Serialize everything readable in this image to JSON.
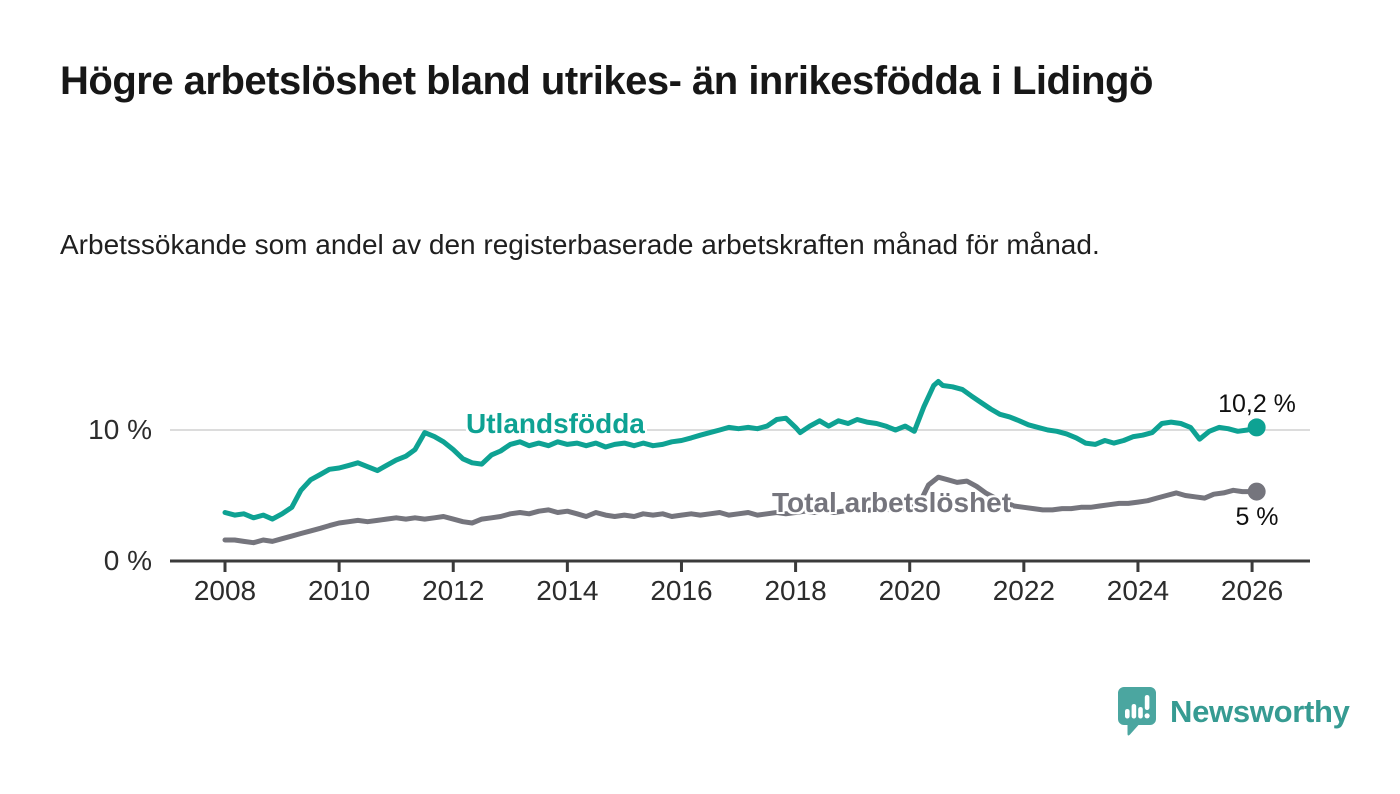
{
  "header": {
    "title": "Högre arbetslöshet bland utrikes- än inrikesfödda i Lidingö",
    "subtitle": "Arbetssökande som andel av den registerbaserade arbetskraften månad för månad."
  },
  "chart_data": {
    "type": "line",
    "title": "Högre arbetslöshet bland utrikes- än inrikesfödda i Lidingö",
    "subtitle": "Arbetssökande som andel av den registerbaserade arbetskraften månad för månad.",
    "xlabel": "",
    "ylabel": "",
    "x_ticks": [
      2008,
      2010,
      2012,
      2014,
      2016,
      2018,
      2020,
      2022,
      2024,
      2026
    ],
    "x_range_years": [
      2008,
      2026.2
    ],
    "ylim": [
      0,
      15
    ],
    "y_axis_labels": [
      "10 %",
      "0 %"
    ],
    "y_gridlines_pct": [
      10
    ],
    "grid": "horizontal-10-only",
    "legend_position": "inline-labels-on-lines",
    "colors": {
      "foreign_born_line": "#0ea293",
      "total_line": "#75757d",
      "gridline": "#dcdcdc",
      "axis": "#3b3b3b"
    },
    "series": [
      {
        "name": "Utlandsfödda",
        "color": "#0ea293",
        "end_label": "10,2 %",
        "end_value": 10.2,
        "data": [
          [
            2008.0,
            3.7
          ],
          [
            2008.17,
            3.5
          ],
          [
            2008.33,
            3.6
          ],
          [
            2008.5,
            3.3
          ],
          [
            2008.67,
            3.5
          ],
          [
            2008.83,
            3.2
          ],
          [
            2009.0,
            3.6
          ],
          [
            2009.17,
            4.1
          ],
          [
            2009.33,
            5.4
          ],
          [
            2009.5,
            6.2
          ],
          [
            2009.67,
            6.6
          ],
          [
            2009.83,
            7.0
          ],
          [
            2010.0,
            7.1
          ],
          [
            2010.17,
            7.3
          ],
          [
            2010.33,
            7.5
          ],
          [
            2010.5,
            7.2
          ],
          [
            2010.67,
            6.9
          ],
          [
            2010.83,
            7.3
          ],
          [
            2011.0,
            7.7
          ],
          [
            2011.17,
            8.0
          ],
          [
            2011.33,
            8.5
          ],
          [
            2011.5,
            9.8
          ],
          [
            2011.67,
            9.5
          ],
          [
            2011.83,
            9.1
          ],
          [
            2012.0,
            8.5
          ],
          [
            2012.17,
            7.8
          ],
          [
            2012.33,
            7.5
          ],
          [
            2012.5,
            7.4
          ],
          [
            2012.67,
            8.1
          ],
          [
            2012.83,
            8.4
          ],
          [
            2013.0,
            8.9
          ],
          [
            2013.17,
            9.1
          ],
          [
            2013.33,
            8.8
          ],
          [
            2013.5,
            9.0
          ],
          [
            2013.67,
            8.8
          ],
          [
            2013.83,
            9.1
          ],
          [
            2014.0,
            8.9
          ],
          [
            2014.17,
            9.0
          ],
          [
            2014.33,
            8.8
          ],
          [
            2014.5,
            9.0
          ],
          [
            2014.67,
            8.7
          ],
          [
            2014.83,
            8.9
          ],
          [
            2015.0,
            9.0
          ],
          [
            2015.17,
            8.8
          ],
          [
            2015.33,
            9.0
          ],
          [
            2015.5,
            8.8
          ],
          [
            2015.67,
            8.9
          ],
          [
            2015.83,
            9.1
          ],
          [
            2016.0,
            9.2
          ],
          [
            2016.17,
            9.4
          ],
          [
            2016.33,
            9.6
          ],
          [
            2016.5,
            9.8
          ],
          [
            2016.67,
            10.0
          ],
          [
            2016.83,
            10.2
          ],
          [
            2017.0,
            10.1
          ],
          [
            2017.17,
            10.2
          ],
          [
            2017.33,
            10.1
          ],
          [
            2017.5,
            10.3
          ],
          [
            2017.67,
            10.8
          ],
          [
            2017.83,
            10.9
          ],
          [
            2018.0,
            10.2
          ],
          [
            2018.08,
            9.8
          ],
          [
            2018.25,
            10.3
          ],
          [
            2018.42,
            10.7
          ],
          [
            2018.58,
            10.3
          ],
          [
            2018.75,
            10.7
          ],
          [
            2018.92,
            10.5
          ],
          [
            2019.08,
            10.8
          ],
          [
            2019.25,
            10.6
          ],
          [
            2019.42,
            10.5
          ],
          [
            2019.58,
            10.3
          ],
          [
            2019.75,
            10.0
          ],
          [
            2019.92,
            10.3
          ],
          [
            2020.08,
            9.9
          ],
          [
            2020.25,
            11.8
          ],
          [
            2020.42,
            13.4
          ],
          [
            2020.5,
            13.7
          ],
          [
            2020.58,
            13.4
          ],
          [
            2020.75,
            13.3
          ],
          [
            2020.92,
            13.1
          ],
          [
            2021.08,
            12.6
          ],
          [
            2021.25,
            12.1
          ],
          [
            2021.42,
            11.6
          ],
          [
            2021.58,
            11.2
          ],
          [
            2021.75,
            11.0
          ],
          [
            2021.92,
            10.7
          ],
          [
            2022.08,
            10.4
          ],
          [
            2022.25,
            10.2
          ],
          [
            2022.42,
            10.0
          ],
          [
            2022.58,
            9.9
          ],
          [
            2022.75,
            9.7
          ],
          [
            2022.92,
            9.4
          ],
          [
            2023.08,
            9.0
          ],
          [
            2023.25,
            8.9
          ],
          [
            2023.42,
            9.2
          ],
          [
            2023.58,
            9.0
          ],
          [
            2023.75,
            9.2
          ],
          [
            2023.92,
            9.5
          ],
          [
            2024.08,
            9.6
          ],
          [
            2024.25,
            9.8
          ],
          [
            2024.42,
            10.5
          ],
          [
            2024.58,
            10.6
          ],
          [
            2024.75,
            10.5
          ],
          [
            2024.92,
            10.2
          ],
          [
            2025.08,
            9.3
          ],
          [
            2025.25,
            9.9
          ],
          [
            2025.42,
            10.2
          ],
          [
            2025.58,
            10.1
          ],
          [
            2025.75,
            9.9
          ],
          [
            2025.92,
            10.0
          ],
          [
            2026.08,
            10.2
          ]
        ]
      },
      {
        "name": "Total arbetslöshet",
        "color": "#75757d",
        "end_label": "5 %",
        "end_value": 5.3,
        "data": [
          [
            2008.0,
            1.6
          ],
          [
            2008.17,
            1.6
          ],
          [
            2008.33,
            1.5
          ],
          [
            2008.5,
            1.4
          ],
          [
            2008.67,
            1.6
          ],
          [
            2008.83,
            1.5
          ],
          [
            2009.0,
            1.7
          ],
          [
            2009.17,
            1.9
          ],
          [
            2009.33,
            2.1
          ],
          [
            2009.5,
            2.3
          ],
          [
            2009.67,
            2.5
          ],
          [
            2009.83,
            2.7
          ],
          [
            2010.0,
            2.9
          ],
          [
            2010.17,
            3.0
          ],
          [
            2010.33,
            3.1
          ],
          [
            2010.5,
            3.0
          ],
          [
            2010.67,
            3.1
          ],
          [
            2010.83,
            3.2
          ],
          [
            2011.0,
            3.3
          ],
          [
            2011.17,
            3.2
          ],
          [
            2011.33,
            3.3
          ],
          [
            2011.5,
            3.2
          ],
          [
            2011.67,
            3.3
          ],
          [
            2011.83,
            3.4
          ],
          [
            2012.0,
            3.2
          ],
          [
            2012.17,
            3.0
          ],
          [
            2012.33,
            2.9
          ],
          [
            2012.5,
            3.2
          ],
          [
            2012.67,
            3.3
          ],
          [
            2012.83,
            3.4
          ],
          [
            2013.0,
            3.6
          ],
          [
            2013.17,
            3.7
          ],
          [
            2013.33,
            3.6
          ],
          [
            2013.5,
            3.8
          ],
          [
            2013.67,
            3.9
          ],
          [
            2013.83,
            3.7
          ],
          [
            2014.0,
            3.8
          ],
          [
            2014.17,
            3.6
          ],
          [
            2014.33,
            3.4
          ],
          [
            2014.5,
            3.7
          ],
          [
            2014.67,
            3.5
          ],
          [
            2014.83,
            3.4
          ],
          [
            2015.0,
            3.5
          ],
          [
            2015.17,
            3.4
          ],
          [
            2015.33,
            3.6
          ],
          [
            2015.5,
            3.5
          ],
          [
            2015.67,
            3.6
          ],
          [
            2015.83,
            3.4
          ],
          [
            2016.0,
            3.5
          ],
          [
            2016.17,
            3.6
          ],
          [
            2016.33,
            3.5
          ],
          [
            2016.5,
            3.6
          ],
          [
            2016.67,
            3.7
          ],
          [
            2016.83,
            3.5
          ],
          [
            2017.0,
            3.6
          ],
          [
            2017.17,
            3.7
          ],
          [
            2017.33,
            3.5
          ],
          [
            2017.5,
            3.6
          ],
          [
            2017.67,
            3.7
          ],
          [
            2017.83,
            3.6
          ],
          [
            2018.0,
            3.7
          ],
          [
            2018.17,
            3.8
          ],
          [
            2018.33,
            3.7
          ],
          [
            2018.5,
            3.9
          ],
          [
            2018.67,
            3.7
          ],
          [
            2018.83,
            3.8
          ],
          [
            2019.0,
            3.9
          ],
          [
            2019.17,
            3.8
          ],
          [
            2019.33,
            3.9
          ],
          [
            2019.5,
            4.0
          ],
          [
            2019.67,
            3.9
          ],
          [
            2019.83,
            4.0
          ],
          [
            2020.0,
            4.0
          ],
          [
            2020.17,
            4.4
          ],
          [
            2020.33,
            5.8
          ],
          [
            2020.5,
            6.4
          ],
          [
            2020.67,
            6.2
          ],
          [
            2020.83,
            6.0
          ],
          [
            2021.0,
            6.1
          ],
          [
            2021.17,
            5.7
          ],
          [
            2021.33,
            5.2
          ],
          [
            2021.5,
            4.8
          ],
          [
            2021.67,
            4.5
          ],
          [
            2021.83,
            4.2
          ],
          [
            2022.0,
            4.1
          ],
          [
            2022.17,
            4.0
          ],
          [
            2022.33,
            3.9
          ],
          [
            2022.5,
            3.9
          ],
          [
            2022.67,
            4.0
          ],
          [
            2022.83,
            4.0
          ],
          [
            2023.0,
            4.1
          ],
          [
            2023.17,
            4.1
          ],
          [
            2023.33,
            4.2
          ],
          [
            2023.5,
            4.3
          ],
          [
            2023.67,
            4.4
          ],
          [
            2023.83,
            4.4
          ],
          [
            2024.0,
            4.5
          ],
          [
            2024.17,
            4.6
          ],
          [
            2024.33,
            4.8
          ],
          [
            2024.5,
            5.0
          ],
          [
            2024.67,
            5.2
          ],
          [
            2024.83,
            5.0
          ],
          [
            2025.0,
            4.9
          ],
          [
            2025.17,
            4.8
          ],
          [
            2025.33,
            5.1
          ],
          [
            2025.5,
            5.2
          ],
          [
            2025.67,
            5.4
          ],
          [
            2025.83,
            5.3
          ],
          [
            2026.08,
            5.3
          ]
        ]
      }
    ]
  },
  "footer": {
    "logo_text": "Newsworthy"
  }
}
